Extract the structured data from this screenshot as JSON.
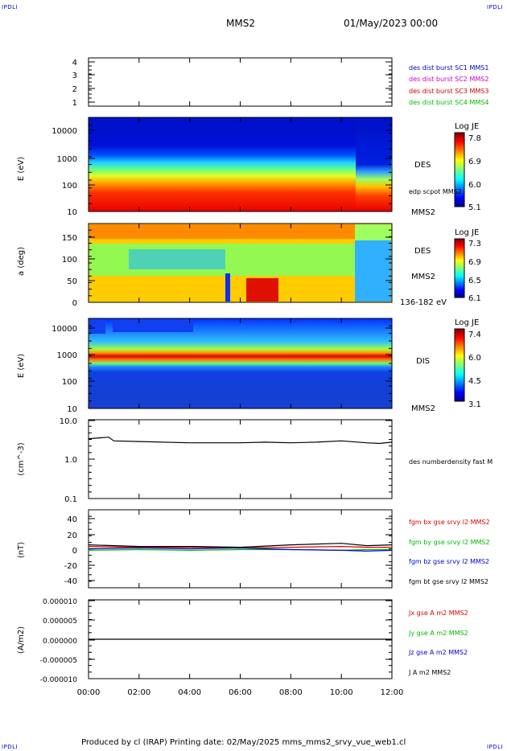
{
  "corners": {
    "tl": "IPDLI",
    "tr": "IPDLI",
    "bl": "IPDLI",
    "br": "IPDLI"
  },
  "title": {
    "mission": "MMS2",
    "date": "01/May/2023 00:00"
  },
  "footer": {
    "text": "Produced by cl (IRAP)   Printing date: 02/May/2025   mms_mms2_srvy_vue_web1.cl"
  },
  "chart_data": [
    {
      "id": "panel1",
      "type": "line",
      "yticks": [
        "4",
        "3",
        "2",
        "1"
      ],
      "legend": [
        {
          "label": "des dist burst SC1 MMS1",
          "color": "#0000cc"
        },
        {
          "label": "des dist burst SC2 MMS2",
          "color": "#cc00cc"
        },
        {
          "label": "des dist burst SC3 MMS3",
          "color": "#cc0000"
        },
        {
          "label": "des dist burst SC4 MMS4",
          "color": "#00bb00"
        }
      ]
    },
    {
      "id": "panel2",
      "type": "heatmap",
      "ylabel": "E (eV)",
      "yticks": [
        "10000",
        "1000",
        "100",
        "10"
      ],
      "log": true,
      "ylim": [
        10,
        30000
      ],
      "right_labels": [
        "DES",
        "edp scpot MMS2",
        "MMS2"
      ],
      "colorbar": {
        "title": "Log JE",
        "ticks": [
          "7.8",
          "6.9",
          "6.0",
          "5.1"
        ],
        "range": [
          5.1,
          7.8
        ]
      }
    },
    {
      "id": "panel3",
      "type": "heatmap",
      "ylabel": "a (deg)",
      "yticks": [
        "150",
        "100",
        "50",
        "0"
      ],
      "ylim": [
        0,
        180
      ],
      "right_labels": [
        "DES",
        "MMS2",
        "136-182 eV"
      ],
      "colorbar": {
        "title": "Log JE",
        "ticks": [
          "7.3",
          "6.9",
          "6.5",
          "6.1"
        ],
        "range": [
          6.1,
          7.3
        ]
      }
    },
    {
      "id": "panel4",
      "type": "heatmap",
      "ylabel": "E (eV)",
      "yticks": [
        "10000",
        "1000",
        "100",
        "10"
      ],
      "log": true,
      "ylim": [
        10,
        30000
      ],
      "right_labels": [
        "DIS",
        "MMS2"
      ],
      "colorbar": {
        "title": "Log JE",
        "ticks": [
          "7.4",
          "6.0",
          "4.5",
          "3.1"
        ],
        "range": [
          3.1,
          7.4
        ]
      }
    },
    {
      "id": "panel5",
      "type": "line",
      "ylabel": "(cm^-3)",
      "yticks": [
        "10.0",
        "1.0",
        "0.1"
      ],
      "log": true,
      "ylim": [
        0.1,
        10
      ],
      "legend": [
        {
          "label": "des numberdensity fast M",
          "color": "#000000"
        }
      ],
      "series": [
        {
          "x": [
            0,
            0.8,
            1.0,
            2.0,
            4.0,
            6.0,
            7.0,
            8.0,
            9.0,
            10.0,
            11.0,
            11.5,
            12.0
          ],
          "values": [
            3.3,
            3.6,
            2.9,
            2.8,
            2.6,
            2.6,
            2.7,
            2.6,
            2.7,
            2.9,
            2.6,
            2.5,
            2.7
          ]
        }
      ]
    },
    {
      "id": "panel6",
      "type": "line",
      "ylabel": "(nT)",
      "yticks": [
        "40",
        "20",
        "0",
        "-20",
        "-40"
      ],
      "ylim": [
        -50,
        50
      ],
      "legend": [
        {
          "label": "fgm bx gse srvy l2 MMS2",
          "color": "#dd0000"
        },
        {
          "label": "fgm by gse srvy l2 MMS2",
          "color": "#00bb00"
        },
        {
          "label": "fgm bz gse srvy l2 MMS2",
          "color": "#0000dd"
        },
        {
          "label": "fgm bt gse srvy l2 MMS2",
          "color": "#000000"
        }
      ],
      "series": [
        {
          "x": [
            0,
            2,
            4,
            6,
            8,
            10,
            11,
            12
          ],
          "values": [
            3,
            2,
            2,
            1,
            2,
            3,
            2,
            2
          ],
          "color": "#dd0000"
        },
        {
          "x": [
            0,
            2,
            4,
            6,
            8,
            10,
            11,
            12
          ],
          "values": [
            -2,
            -1,
            -2,
            -1,
            -1,
            -2,
            -1,
            -1
          ],
          "color": "#00bb00"
        },
        {
          "x": [
            0,
            2,
            4,
            6,
            8,
            10,
            11,
            12
          ],
          "values": [
            0,
            1,
            0,
            1,
            -1,
            -2,
            -3,
            -2
          ],
          "color": "#0000dd"
        },
        {
          "x": [
            0,
            2,
            4,
            6,
            8,
            10,
            11,
            12
          ],
          "values": [
            5,
            3,
            3,
            2,
            5,
            7,
            4,
            5
          ],
          "color": "#000000"
        }
      ]
    },
    {
      "id": "panel7",
      "type": "line",
      "ylabel": "(A/m2)",
      "yticks": [
        "0.000010",
        "0.000005",
        "0.000000",
        "-0.000005",
        "-0.000010"
      ],
      "ylim": [
        -1e-05,
        1e-05
      ],
      "legend": [
        {
          "label": "Jx gse A m2 MMS2",
          "color": "#dd0000"
        },
        {
          "label": "Jy gse A m2 MMS2",
          "color": "#00bb00"
        },
        {
          "label": "Jz gse A m2 MMS2",
          "color": "#0000dd"
        },
        {
          "label": "J A m2 MMS2",
          "color": "#000000"
        }
      ],
      "series": [
        {
          "x": [
            0,
            12
          ],
          "values": [
            0,
            0
          ]
        }
      ]
    }
  ],
  "xaxis": {
    "ticks": [
      "00:00",
      "02:00",
      "04:00",
      "06:00",
      "08:00",
      "10:00",
      "12:00"
    ],
    "range": [
      0,
      12
    ]
  }
}
